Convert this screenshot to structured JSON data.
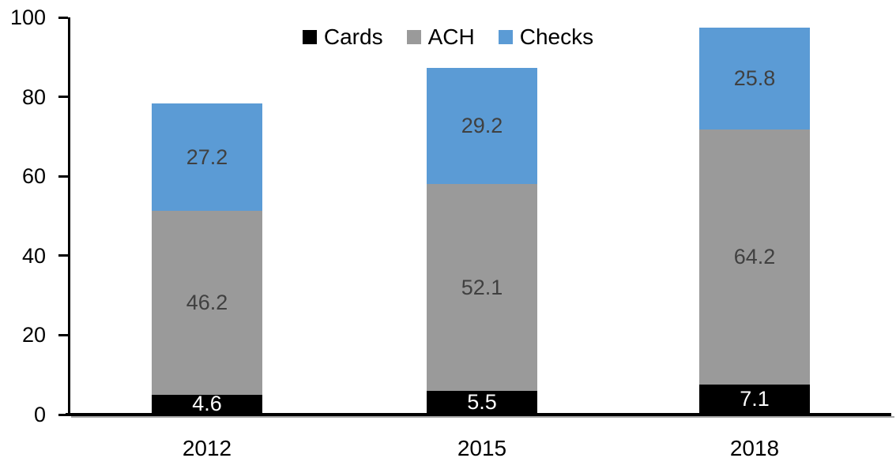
{
  "chart_data": {
    "type": "bar",
    "stacked": true,
    "categories": [
      "2012",
      "2015",
      "2018"
    ],
    "series": [
      {
        "name": "Cards",
        "color": "#000000",
        "label_color": "#ffffff",
        "values": [
          4.6,
          5.5,
          7.1
        ]
      },
      {
        "name": "ACH",
        "color": "#9a9a9a",
        "label_color": "#404040",
        "values": [
          46.2,
          52.1,
          64.2
        ]
      },
      {
        "name": "Checks",
        "color": "#5b9bd5",
        "label_color": "#404040",
        "values": [
          27.2,
          29.2,
          25.8
        ]
      }
    ],
    "ylim": [
      0,
      100
    ],
    "yticks": [
      0,
      20,
      40,
      60,
      80,
      100
    ],
    "legend": {
      "position": "top",
      "entries": [
        "Cards",
        "ACH",
        "Checks"
      ]
    },
    "grid": false,
    "axis_color": "#000000"
  }
}
